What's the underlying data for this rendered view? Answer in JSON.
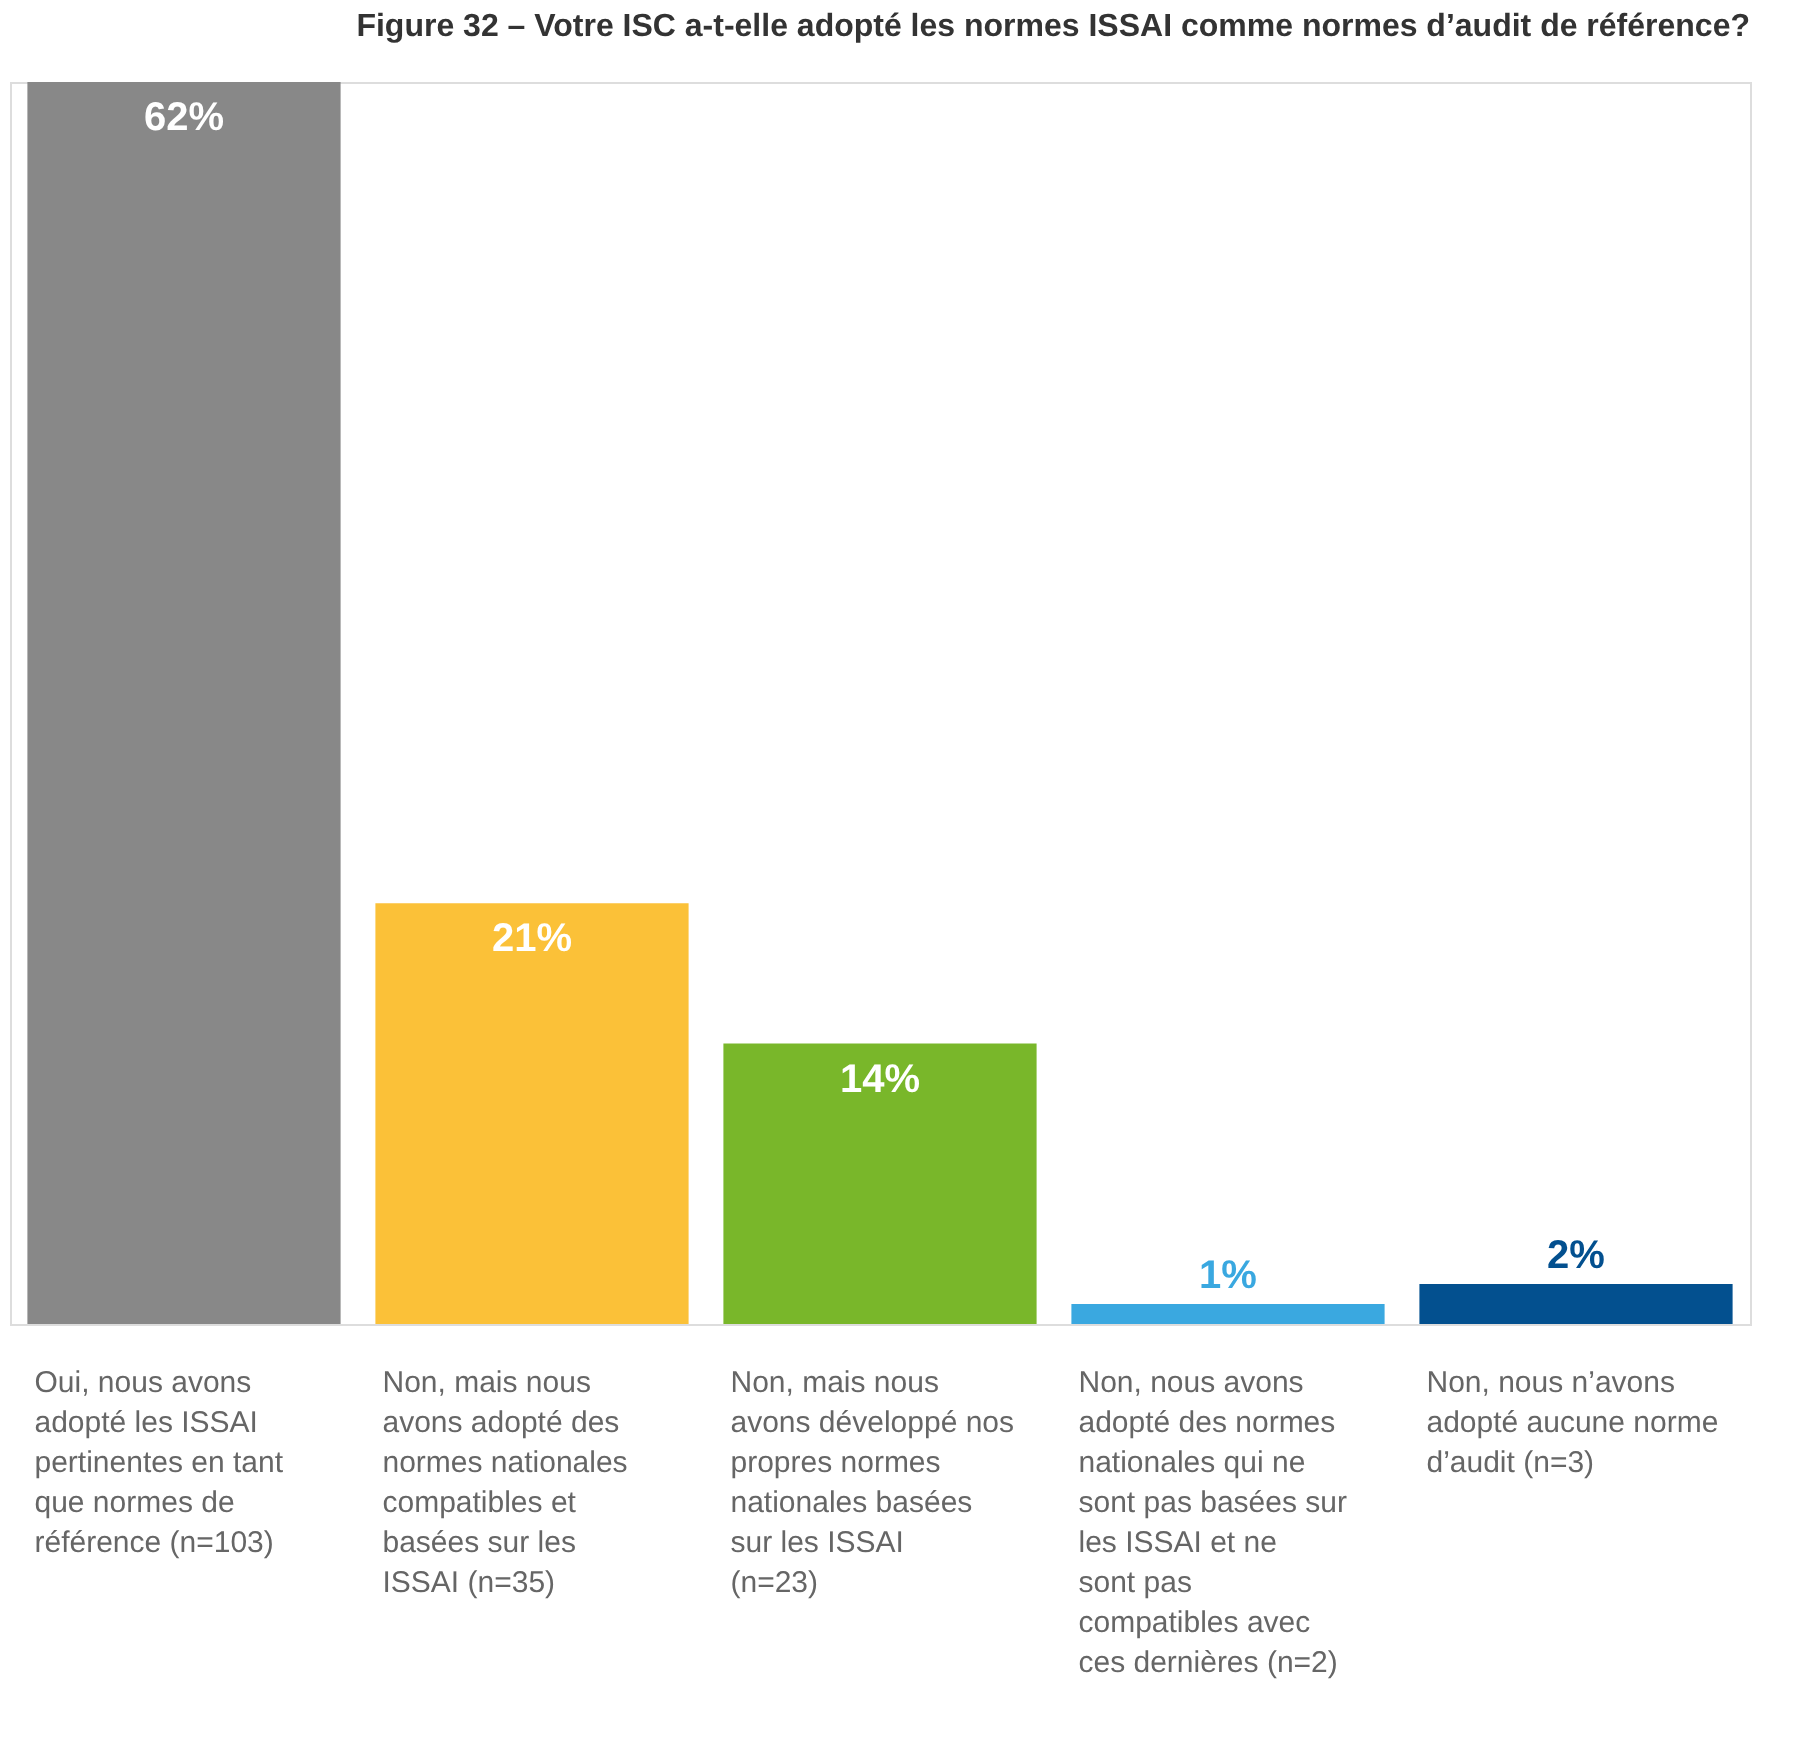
{
  "chart_data": {
    "type": "bar",
    "title": "Figure 32 – Votre ISC a-t-elle adopté les normes ISSAI comme normes d’audit de référence?",
    "categories": [
      "Oui, nous avons adopté les ISSAI pertinentes en tant que normes de référence (n=103)",
      "Non, mais nous avons adopté des normes nationales compatibles et basées sur les ISSAI (n=35)",
      "Non, mais nous avons développé nos propres normes nationales basées sur les ISSAI (n=23)",
      "Non, nous avons adopté des normes nationales qui ne sont pas basées sur les ISSAI et ne sont pas compatibles avec ces dernières (n=2)",
      "Non, nous n’avons adopté aucune norme d’audit (n=3)"
    ],
    "values": [
      62,
      21,
      14,
      1,
      2
    ],
    "value_labels": [
      "62%",
      "21%",
      "14%",
      "1%",
      "2%"
    ],
    "colors": [
      "#888888",
      "#fbc138",
      "#79b72a",
      "#3aa8e0",
      "#03508f"
    ]
  }
}
